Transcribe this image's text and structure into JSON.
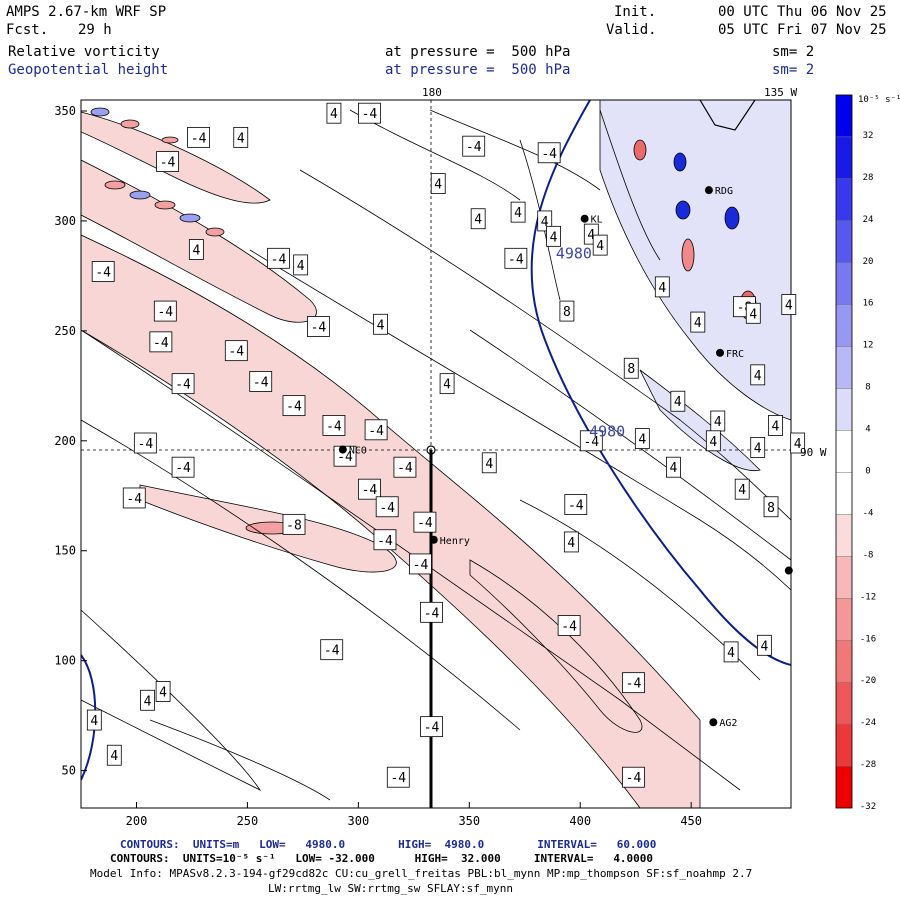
{
  "header": {
    "model": "AMPS 2.67-km WRF SP",
    "fcst_label": "Fcst.",
    "fcst_value": "29 h",
    "init_label": "Init.",
    "init_time": "00 UTC Thu 06 Nov 25",
    "valid_label": "Valid.",
    "valid_time": "05 UTC Fri 07 Nov 25",
    "field1_name": "Relative vorticity",
    "field1_level": "at pressure =  500 hPa",
    "field1_smooth": "sm= 2",
    "field2_name": "Geopotential height",
    "field2_level": "at pressure =  500 hPa",
    "field2_smooth": "sm= 2"
  },
  "map": {
    "x_ticks": [
      "200",
      "250",
      "300",
      "350",
      "400",
      "450"
    ],
    "y_ticks": [
      "50",
      "100",
      "150",
      "200",
      "250",
      "300",
      "350"
    ],
    "meridian_labels": {
      "top_180": "180",
      "top_135w": "135 W",
      "right_90w": "90 W"
    },
    "stations": [
      {
        "name": "NCO",
        "x": 293,
        "y": 196
      },
      {
        "name": "Henry",
        "x": 334,
        "y": 155
      },
      {
        "name": "KL",
        "x": 402,
        "y": 301
      },
      {
        "name": "RDG",
        "x": 458,
        "y": 314
      },
      {
        "name": "FRC",
        "x": 463,
        "y": 240
      },
      {
        "name": "AG2",
        "x": 460,
        "y": 72
      },
      {
        "name": "",
        "x": 494,
        "y": 141
      }
    ],
    "height_labels": [
      {
        "text": "4980",
        "x": 389,
        "y": 283
      },
      {
        "text": "4980",
        "x": 404,
        "y": 202
      }
    ],
    "vorticity_labels": [
      {
        "t": "-4",
        "x": 305,
        "y": 349
      },
      {
        "t": "4",
        "x": 289,
        "y": 349
      },
      {
        "t": "-4",
        "x": 228,
        "y": 338
      },
      {
        "t": "4",
        "x": 247,
        "y": 338
      },
      {
        "t": "-4",
        "x": 214,
        "y": 327
      },
      {
        "t": "-4",
        "x": 352,
        "y": 334
      },
      {
        "t": "-4",
        "x": 386,
        "y": 331
      },
      {
        "t": "4",
        "x": 336,
        "y": 317
      },
      {
        "t": "4",
        "x": 372,
        "y": 304
      },
      {
        "t": "4",
        "x": 384,
        "y": 300
      },
      {
        "t": "4",
        "x": 354,
        "y": 301
      },
      {
        "t": "4",
        "x": 388,
        "y": 293
      },
      {
        "t": "4",
        "x": 405,
        "y": 294
      },
      {
        "t": "4",
        "x": 274,
        "y": 280
      },
      {
        "t": "-4",
        "x": 185,
        "y": 277
      },
      {
        "t": "-4",
        "x": 264,
        "y": 283
      },
      {
        "t": "-4",
        "x": 371,
        "y": 283
      },
      {
        "t": "4",
        "x": 227,
        "y": 287
      },
      {
        "t": "4",
        "x": 409,
        "y": 289
      },
      {
        "t": "-4",
        "x": 213,
        "y": 259
      },
      {
        "t": "-4",
        "x": 282,
        "y": 252
      },
      {
        "t": "-4",
        "x": 245,
        "y": 241
      },
      {
        "t": "-4",
        "x": 211,
        "y": 245
      },
      {
        "t": "4",
        "x": 310,
        "y": 253
      },
      {
        "t": "8",
        "x": 394,
        "y": 259
      },
      {
        "t": "4",
        "x": 437,
        "y": 270
      },
      {
        "t": "4",
        "x": 453,
        "y": 254
      },
      {
        "t": "-8",
        "x": 474,
        "y": 261
      },
      {
        "t": "4",
        "x": 478,
        "y": 258
      },
      {
        "t": "4",
        "x": 494,
        "y": 262
      },
      {
        "t": "8",
        "x": 423,
        "y": 233
      },
      {
        "t": "4",
        "x": 340,
        "y": 226
      },
      {
        "t": "-4",
        "x": 221,
        "y": 226
      },
      {
        "t": "-4",
        "x": 256,
        "y": 227
      },
      {
        "t": "4",
        "x": 444,
        "y": 218
      },
      {
        "t": "4",
        "x": 462,
        "y": 209
      },
      {
        "t": "4",
        "x": 480,
        "y": 230
      },
      {
        "t": "4",
        "x": 488,
        "y": 207
      },
      {
        "t": "-4",
        "x": 271,
        "y": 216
      },
      {
        "t": "-4",
        "x": 289,
        "y": 207
      },
      {
        "t": "-4",
        "x": 308,
        "y": 205
      },
      {
        "t": "-4",
        "x": 405,
        "y": 200
      },
      {
        "t": "4",
        "x": 428,
        "y": 201
      },
      {
        "t": "4",
        "x": 460,
        "y": 200
      },
      {
        "t": "4",
        "x": 480,
        "y": 197
      },
      {
        "t": "-4",
        "x": 204,
        "y": 199
      },
      {
        "t": "-4",
        "x": 294,
        "y": 193
      },
      {
        "t": "4",
        "x": 359,
        "y": 190
      },
      {
        "t": "4",
        "x": 498,
        "y": 199
      },
      {
        "t": "-4",
        "x": 221,
        "y": 188
      },
      {
        "t": "-4",
        "x": 321,
        "y": 188
      },
      {
        "t": "-4",
        "x": 305,
        "y": 178
      },
      {
        "t": "4",
        "x": 442,
        "y": 188
      },
      {
        "t": "4",
        "x": 473,
        "y": 178
      },
      {
        "t": "-4",
        "x": 199,
        "y": 174
      },
      {
        "t": "-4",
        "x": 313,
        "y": 170
      },
      {
        "t": "-4",
        "x": 398,
        "y": 171
      },
      {
        "t": "8",
        "x": 486,
        "y": 170
      },
      {
        "t": "-8",
        "x": 271,
        "y": 162
      },
      {
        "t": "-4",
        "x": 330,
        "y": 163
      },
      {
        "t": "-4",
        "x": 312,
        "y": 155
      },
      {
        "t": "4",
        "x": 396,
        "y": 154
      },
      {
        "t": "-4",
        "x": 328,
        "y": 144
      },
      {
        "t": "-4",
        "x": 333,
        "y": 122
      },
      {
        "t": "-4",
        "x": 395,
        "y": 116
      },
      {
        "t": "-4",
        "x": 288,
        "y": 105
      },
      {
        "t": "4",
        "x": 468,
        "y": 104
      },
      {
        "t": "4",
        "x": 483,
        "y": 107
      },
      {
        "t": "-4",
        "x": 424,
        "y": 90
      },
      {
        "t": "4",
        "x": 212,
        "y": 86
      },
      {
        "t": "4",
        "x": 205,
        "y": 82
      },
      {
        "t": "4",
        "x": 181,
        "y": 73
      },
      {
        "t": "-4",
        "x": 333,
        "y": 70
      },
      {
        "t": "4",
        "x": 190,
        "y": 57
      },
      {
        "t": "-4",
        "x": 318,
        "y": 47
      },
      {
        "t": "-4",
        "x": 424,
        "y": 47
      }
    ]
  },
  "colorbar": {
    "unit_label": "10⁻⁵ s⁻¹",
    "levels": [
      "32",
      "28",
      "24",
      "20",
      "16",
      "12",
      "8",
      "4",
      "0",
      "-4",
      "-8",
      "-12",
      "-16",
      "-20",
      "-24",
      "-28",
      "-32"
    ]
  },
  "footer": {
    "line1": "CONTOURS:  UNITS=m   LOW=   4980.0        HIGH=  4980.0        INTERVAL=   60.000",
    "line2": "CONTOURS:  UNITS=10⁻⁵ s⁻¹   LOW= -32.000      HIGH=  32.000     INTERVAL=   4.0000",
    "line3": "Model Info: MPASv8.2.3-194-gf29cd82c CU:cu_grell_freitas PBL:bl_mynn MP:mp_thompson SF:sf_noahmp 2.7",
    "line4": "LW:rrtmg_lw SW:rrtmg_sw SFLAY:sf_mynn"
  },
  "colors": {
    "positive_vorticity": "#8a8ae8",
    "negative_vorticity": "#f2a0a0",
    "height_contour": "#0a1f8f",
    "contour_line": "#000000",
    "title_blue": "#1b2a9a"
  }
}
